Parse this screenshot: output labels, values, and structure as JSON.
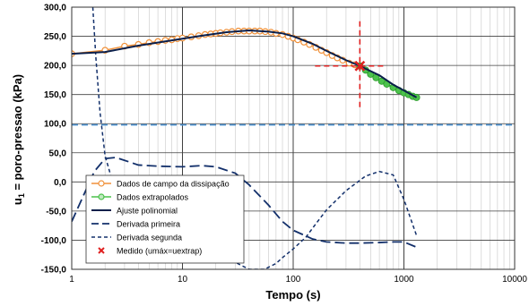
{
  "chart_data": {
    "type": "line",
    "xlabel": "Tempo (s)",
    "ylabel_main": "u",
    "ylabel_sub": "1",
    "ylabel_rest": " = poro-pressao (kPa)",
    "x_scale": "log",
    "xlim": [
      1,
      10000
    ],
    "x_ticks": [
      1,
      10,
      100,
      1000,
      10000
    ],
    "x_tick_labels": [
      "1",
      "10",
      "100",
      "1000",
      "10000"
    ],
    "ylim": [
      -150,
      300
    ],
    "y_ticks": [
      -150,
      -100,
      -50,
      0,
      50,
      100,
      150,
      200,
      250,
      300
    ],
    "y_tick_labels": [
      "-150,0",
      "-100,0",
      "-50,0",
      "0,0",
      "50,0",
      "100,0",
      "150,0",
      "200,0",
      "250,0",
      "300,0"
    ],
    "grid": true,
    "legend_placement": "lower-left",
    "hydrostatic_line": {
      "y": 98,
      "color": "#4a90d0"
    },
    "colors": {
      "field": "#f0913a",
      "extrap": "#4cc24c",
      "fit": "#0b1f4a",
      "deriv1": "#13306b",
      "deriv2": "#13306b",
      "measured": "#e02020"
    },
    "series": [
      {
        "name": "Dados de campo da dissipação",
        "style": "field",
        "x": [
          1,
          2,
          3,
          4,
          5,
          6,
          7,
          8,
          9,
          10,
          12,
          14,
          16,
          18,
          20,
          22,
          25,
          28,
          32,
          36,
          40,
          45,
          50,
          56,
          63,
          70,
          80,
          90,
          100,
          110,
          125,
          140,
          160,
          180,
          200,
          225,
          250,
          280,
          320,
          360,
          400
        ],
        "y": [
          220,
          226,
          233,
          236,
          239,
          241,
          243,
          244,
          246,
          247,
          249,
          251,
          253,
          254,
          255,
          256,
          257,
          258,
          259,
          259,
          259,
          259,
          259,
          258,
          257,
          255,
          253,
          250,
          247,
          244,
          240,
          236,
          231,
          226,
          222,
          217,
          213,
          209,
          204,
          201,
          199
        ]
      },
      {
        "name": "Dados extrapolados",
        "style": "extrap",
        "x": [
          400,
          450,
          500,
          560,
          630,
          700,
          800,
          900,
          1000,
          1100,
          1200,
          1300
        ],
        "y": [
          199,
          192,
          185,
          179,
          173,
          168,
          162,
          157,
          153,
          150,
          147,
          145
        ]
      },
      {
        "name": "Ajuste polinomial",
        "style": "fit",
        "x": [
          1,
          2,
          4,
          8,
          15,
          25,
          40,
          60,
          80,
          100,
          150,
          200,
          300,
          400,
          600,
          800,
          1000,
          1300
        ],
        "y": [
          220,
          223,
          234,
          243,
          251,
          257,
          260,
          258,
          255,
          250,
          237,
          225,
          209,
          199,
          183,
          167,
          157,
          145
        ]
      },
      {
        "name": "Derivada primeira",
        "style": "deriv1",
        "x": [
          1,
          1.3,
          1.6,
          2,
          2.5,
          3,
          4,
          6,
          10,
          15,
          20,
          30,
          40,
          60,
          80,
          100,
          150,
          200,
          300,
          400,
          600,
          800,
          1000,
          1300
        ],
        "y": [
          -68,
          -20,
          18,
          40,
          42,
          37,
          29,
          27,
          26,
          28,
          26,
          15,
          -5,
          -40,
          -68,
          -83,
          -98,
          -103,
          -105,
          -105,
          -104,
          -103,
          -103,
          -112
        ]
      },
      {
        "name": "Derivada segunda",
        "style": "deriv2",
        "x": [
          1.55,
          1.65,
          1.8,
          2.0,
          2.3,
          2.6,
          3,
          4,
          6,
          10,
          15,
          20,
          25,
          30,
          40,
          55,
          70,
          80,
          100,
          130,
          160,
          200,
          300,
          450,
          600,
          800,
          1000,
          1300
        ],
        "y": [
          300,
          215,
          120,
          45,
          5,
          -10,
          -22,
          -38,
          -60,
          -78,
          -95,
          -112,
          -125,
          -138,
          -150,
          -150,
          -140,
          -130,
          -115,
          -95,
          -72,
          -48,
          -15,
          10,
          18,
          12,
          -30,
          -92
        ]
      }
    ],
    "measured_point": {
      "name": "Medido (umáx=uextrap)",
      "x": 400,
      "y": 199
    },
    "legend": [
      {
        "label": "Dados de campo da dissipação",
        "style": "field"
      },
      {
        "label": "Dados extrapolados",
        "style": "extrap"
      },
      {
        "label": "Ajuste polinomial",
        "style": "fit"
      },
      {
        "label": "Derivada primeira",
        "style": "deriv1"
      },
      {
        "label": "Derivada segunda",
        "style": "deriv2"
      },
      {
        "label": "Medido (umáx=uextrap)",
        "style": "measured"
      }
    ]
  }
}
